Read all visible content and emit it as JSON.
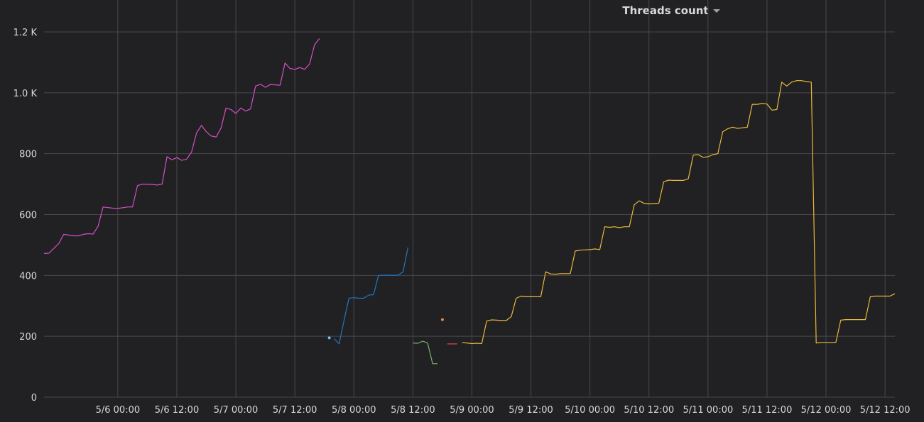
{
  "panel": {
    "title": "Threads count",
    "menu_icon": "caret-down-icon"
  },
  "chart_data": {
    "type": "line",
    "title": "Threads count",
    "xlabel": "",
    "ylabel": "",
    "x_range": [
      "2026-05-05T09:00",
      "2026-05-12T14:00"
    ],
    "ylim": [
      0,
      1200
    ],
    "y_ticks": [
      {
        "value": 0,
        "label": "0"
      },
      {
        "value": 200,
        "label": "200"
      },
      {
        "value": 400,
        "label": "400"
      },
      {
        "value": 600,
        "label": "600"
      },
      {
        "value": 800,
        "label": "800"
      },
      {
        "value": 1000,
        "label": "1.0 K"
      },
      {
        "value": 1200,
        "label": "1.2 K"
      }
    ],
    "x_ticks": [
      {
        "value": "2026-05-06T00:00",
        "label": "5/6 00:00"
      },
      {
        "value": "2026-05-06T12:00",
        "label": "5/6 12:00"
      },
      {
        "value": "2026-05-07T00:00",
        "label": "5/7 00:00"
      },
      {
        "value": "2026-05-07T12:00",
        "label": "5/7 12:00"
      },
      {
        "value": "2026-05-08T00:00",
        "label": "5/8 00:00"
      },
      {
        "value": "2026-05-08T12:00",
        "label": "5/8 12:00"
      },
      {
        "value": "2026-05-09T00:00",
        "label": "5/9 00:00"
      },
      {
        "value": "2026-05-09T12:00",
        "label": "5/9 12:00"
      },
      {
        "value": "2026-05-10T00:00",
        "label": "5/10 00:00"
      },
      {
        "value": "2026-05-10T12:00",
        "label": "5/10 12:00"
      },
      {
        "value": "2026-05-11T00:00",
        "label": "5/11 00:00"
      },
      {
        "value": "2026-05-11T12:00",
        "label": "5/11 12:00"
      },
      {
        "value": "2026-05-12T00:00",
        "label": "5/12 00:00"
      },
      {
        "value": "2026-05-12T12:00",
        "label": "5/12 12:00"
      }
    ],
    "grid": true,
    "legend": "none",
    "series": [
      {
        "color": "#d44fc4",
        "points": [
          [
            "2026-05-05T09:00",
            472
          ],
          [
            "2026-05-05T10:00",
            473
          ],
          [
            "2026-05-05T12:00",
            505
          ],
          [
            "2026-05-05T13:00",
            535
          ],
          [
            "2026-05-05T15:00",
            530
          ],
          [
            "2026-05-05T16:00",
            530
          ],
          [
            "2026-05-05T17:00",
            535
          ],
          [
            "2026-05-05T18:00",
            537
          ],
          [
            "2026-05-05T19:00",
            536
          ],
          [
            "2026-05-05T20:00",
            562
          ],
          [
            "2026-05-05T21:00",
            625
          ],
          [
            "2026-05-05T23:00",
            621
          ],
          [
            "2026-05-06T00:00",
            620
          ],
          [
            "2026-05-06T02:00",
            625
          ],
          [
            "2026-05-06T03:00",
            625
          ],
          [
            "2026-05-06T04:00",
            695
          ],
          [
            "2026-05-06T05:00",
            700
          ],
          [
            "2026-05-06T07:00",
            699
          ],
          [
            "2026-05-06T08:00",
            697
          ],
          [
            "2026-05-06T09:00",
            700
          ],
          [
            "2026-05-06T10:00",
            790
          ],
          [
            "2026-05-06T11:00",
            780
          ],
          [
            "2026-05-06T12:00",
            787
          ],
          [
            "2026-05-06T13:00",
            778
          ],
          [
            "2026-05-06T14:00",
            782
          ],
          [
            "2026-05-06T15:00",
            805
          ],
          [
            "2026-05-06T16:00",
            868
          ],
          [
            "2026-05-06T17:00",
            893
          ],
          [
            "2026-05-06T18:00",
            872
          ],
          [
            "2026-05-06T19:00",
            858
          ],
          [
            "2026-05-06T20:00",
            855
          ],
          [
            "2026-05-06T21:00",
            885
          ],
          [
            "2026-05-06T22:00",
            950
          ],
          [
            "2026-05-06T23:00",
            945
          ],
          [
            "2026-05-07T00:00",
            932
          ],
          [
            "2026-05-07T01:00",
            950
          ],
          [
            "2026-05-07T02:00",
            940
          ],
          [
            "2026-05-07T03:00",
            947
          ],
          [
            "2026-05-07T04:00",
            1022
          ],
          [
            "2026-05-07T05:00",
            1028
          ],
          [
            "2026-05-07T06:00",
            1018
          ],
          [
            "2026-05-07T07:00",
            1027
          ],
          [
            "2026-05-07T08:00",
            1026
          ],
          [
            "2026-05-07T09:00",
            1025
          ],
          [
            "2026-05-07T10:00",
            1098
          ],
          [
            "2026-05-07T11:00",
            1080
          ],
          [
            "2026-05-07T12:00",
            1077
          ],
          [
            "2026-05-07T13:00",
            1083
          ],
          [
            "2026-05-07T14:00",
            1077
          ],
          [
            "2026-05-07T15:00",
            1095
          ],
          [
            "2026-05-07T16:00",
            1158
          ],
          [
            "2026-05-07T17:00",
            1178
          ]
        ]
      },
      {
        "color": "#73bfe8",
        "points": [
          [
            "2026-05-07T19:00",
            195
          ]
        ]
      },
      {
        "color": "#1f78c1",
        "points": [
          [
            "2026-05-07T20:00",
            192
          ],
          [
            "2026-05-07T21:00",
            175
          ],
          [
            "2026-05-07T22:00",
            252
          ],
          [
            "2026-05-07T23:00",
            325
          ],
          [
            "2026-05-08T00:00",
            327
          ],
          [
            "2026-05-08T01:00",
            325
          ],
          [
            "2026-05-08T02:00",
            325
          ],
          [
            "2026-05-08T03:00",
            335
          ],
          [
            "2026-05-08T04:00",
            337
          ],
          [
            "2026-05-08T05:00",
            400
          ],
          [
            "2026-05-08T07:00",
            401
          ],
          [
            "2026-05-08T08:00",
            400
          ],
          [
            "2026-05-08T09:00",
            401
          ],
          [
            "2026-05-08T10:00",
            412
          ],
          [
            "2026-05-08T11:00",
            492
          ]
        ]
      },
      {
        "color": "#7eb26d",
        "points": [
          [
            "2026-05-08T12:00",
            178
          ],
          [
            "2026-05-08T13:00",
            177
          ],
          [
            "2026-05-08T14:00",
            184
          ],
          [
            "2026-05-08T15:00",
            178
          ],
          [
            "2026-05-08T16:00",
            110
          ],
          [
            "2026-05-08T17:00",
            110
          ]
        ]
      },
      {
        "color": "#ef843c",
        "points": [
          [
            "2026-05-08T18:00",
            255
          ]
        ]
      },
      {
        "color": "#e24d42",
        "points": [
          [
            "2026-05-08T19:00",
            175
          ],
          [
            "2026-05-08T21:00",
            175
          ]
        ]
      },
      {
        "color": "#eab839",
        "points": [
          [
            "2026-05-08T22:00",
            180
          ],
          [
            "2026-05-08T23:00",
            178
          ],
          [
            "2026-05-09T00:00",
            176
          ],
          [
            "2026-05-09T01:00",
            177
          ],
          [
            "2026-05-09T02:00",
            176
          ],
          [
            "2026-05-09T03:00",
            250
          ],
          [
            "2026-05-09T04:00",
            254
          ],
          [
            "2026-05-09T05:00",
            253
          ],
          [
            "2026-05-09T06:00",
            252
          ],
          [
            "2026-05-09T07:00",
            252
          ],
          [
            "2026-05-09T08:00",
            265
          ],
          [
            "2026-05-09T09:00",
            325
          ],
          [
            "2026-05-09T10:00",
            332
          ],
          [
            "2026-05-09T11:00",
            330
          ],
          [
            "2026-05-09T12:00",
            330
          ],
          [
            "2026-05-09T13:00",
            330
          ],
          [
            "2026-05-09T14:00",
            330
          ],
          [
            "2026-05-09T15:00",
            412
          ],
          [
            "2026-05-09T16:00",
            405
          ],
          [
            "2026-05-09T17:00",
            404
          ],
          [
            "2026-05-09T18:00",
            406
          ],
          [
            "2026-05-09T19:00",
            406
          ],
          [
            "2026-05-09T20:00",
            406
          ],
          [
            "2026-05-09T21:00",
            480
          ],
          [
            "2026-05-09T22:00",
            483
          ],
          [
            "2026-05-09T23:00",
            484
          ],
          [
            "2026-05-10T00:00",
            485
          ],
          [
            "2026-05-10T01:00",
            487
          ],
          [
            "2026-05-10T02:00",
            485
          ],
          [
            "2026-05-10T03:00",
            560
          ],
          [
            "2026-05-10T04:00",
            558
          ],
          [
            "2026-05-10T05:00",
            560
          ],
          [
            "2026-05-10T06:00",
            557
          ],
          [
            "2026-05-10T07:00",
            560
          ],
          [
            "2026-05-10T08:00",
            560
          ],
          [
            "2026-05-10T09:00",
            632
          ],
          [
            "2026-05-10T10:00",
            645
          ],
          [
            "2026-05-10T11:00",
            637
          ],
          [
            "2026-05-10T12:00",
            635
          ],
          [
            "2026-05-10T13:00",
            636
          ],
          [
            "2026-05-10T14:00",
            637
          ],
          [
            "2026-05-10T15:00",
            708
          ],
          [
            "2026-05-10T16:00",
            713
          ],
          [
            "2026-05-10T17:00",
            712
          ],
          [
            "2026-05-10T18:00",
            712
          ],
          [
            "2026-05-10T19:00",
            712
          ],
          [
            "2026-05-10T20:00",
            718
          ],
          [
            "2026-05-10T21:00",
            795
          ],
          [
            "2026-05-10T22:00",
            797
          ],
          [
            "2026-05-10T23:00",
            788
          ],
          [
            "2026-05-11T00:00",
            790
          ],
          [
            "2026-05-11T01:00",
            797
          ],
          [
            "2026-05-11T02:00",
            800
          ],
          [
            "2026-05-11T03:00",
            872
          ],
          [
            "2026-05-11T04:00",
            882
          ],
          [
            "2026-05-11T05:00",
            887
          ],
          [
            "2026-05-11T06:00",
            883
          ],
          [
            "2026-05-11T07:00",
            885
          ],
          [
            "2026-05-11T08:00",
            887
          ],
          [
            "2026-05-11T09:00",
            962
          ],
          [
            "2026-05-11T10:00",
            962
          ],
          [
            "2026-05-11T11:00",
            965
          ],
          [
            "2026-05-11T12:00",
            963
          ],
          [
            "2026-05-11T13:00",
            943
          ],
          [
            "2026-05-11T14:00",
            945
          ],
          [
            "2026-05-11T15:00",
            1035
          ],
          [
            "2026-05-11T16:00",
            1022
          ],
          [
            "2026-05-11T17:00",
            1035
          ],
          [
            "2026-05-11T18:00",
            1040
          ],
          [
            "2026-05-11T19:00",
            1040
          ],
          [
            "2026-05-11T20:00",
            1037
          ],
          [
            "2026-05-11T21:00",
            1035
          ],
          [
            "2026-05-11T22:00",
            178
          ],
          [
            "2026-05-11T23:00",
            180
          ],
          [
            "2026-05-12T00:00",
            180
          ],
          [
            "2026-05-12T01:00",
            180
          ],
          [
            "2026-05-12T02:00",
            180
          ],
          [
            "2026-05-12T03:00",
            253
          ],
          [
            "2026-05-12T04:00",
            255
          ],
          [
            "2026-05-12T05:00",
            255
          ],
          [
            "2026-05-12T06:00",
            255
          ],
          [
            "2026-05-12T07:00",
            255
          ],
          [
            "2026-05-12T08:00",
            255
          ],
          [
            "2026-05-12T09:00",
            330
          ],
          [
            "2026-05-12T10:00",
            332
          ],
          [
            "2026-05-12T11:00",
            332
          ],
          [
            "2026-05-12T12:00",
            332
          ],
          [
            "2026-05-12T13:00",
            332
          ],
          [
            "2026-05-12T14:00",
            340
          ]
        ]
      }
    ]
  }
}
